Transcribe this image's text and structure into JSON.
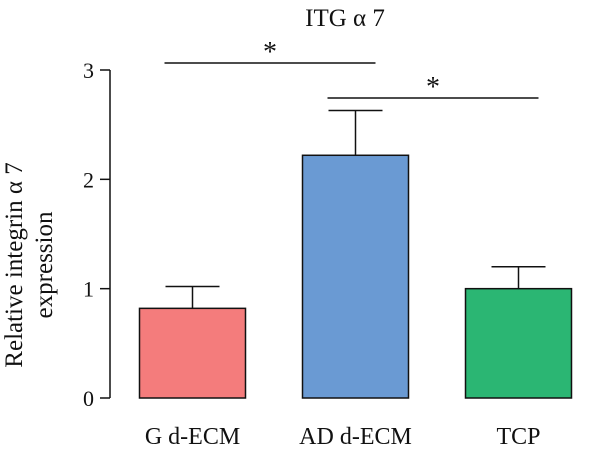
{
  "chart_data": {
    "type": "bar",
    "title": "ITG α 7",
    "ylabel_lines": [
      "Relative integrin α 7",
      "expression"
    ],
    "xlabel": "",
    "categories": [
      "G d-ECM",
      "AD d-ECM",
      "TCP"
    ],
    "values": [
      0.82,
      2.22,
      1.0
    ],
    "errors": [
      0.2,
      0.41,
      0.2
    ],
    "colors": [
      "#f47c7c",
      "#6a9ad3",
      "#2bb673"
    ],
    "ylim": [
      0,
      3
    ],
    "yticks": [
      "0",
      "1",
      "2",
      "3"
    ],
    "grid": false,
    "significance": [
      {
        "between": [
          "G d-ECM",
          "AD d-ECM"
        ],
        "label": "*"
      },
      {
        "between": [
          "AD d-ECM",
          "TCP"
        ],
        "label": "*"
      }
    ]
  }
}
